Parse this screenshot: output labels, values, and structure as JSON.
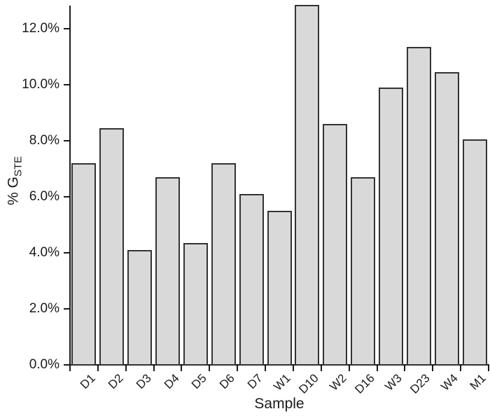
{
  "chart_data": {
    "type": "bar",
    "title": "",
    "xlabel": "Sample",
    "ylabel": "% G_STE",
    "ylabel_main": "% G",
    "ylabel_sub": "STE",
    "categories": [
      "D1",
      "D2",
      "D3",
      "D4",
      "D5",
      "D6",
      "D7",
      "W1",
      "D10",
      "W2",
      "D16",
      "W3",
      "D23",
      "W4",
      "M1"
    ],
    "values": [
      7.2,
      8.45,
      4.1,
      6.7,
      4.35,
      7.2,
      6.1,
      5.5,
      12.85,
      8.6,
      6.7,
      9.9,
      11.35,
      10.45,
      8.05
    ],
    "y_tick_values": [
      0,
      2,
      4,
      6,
      8,
      10,
      12
    ],
    "y_tick_labels": [
      "0.0%",
      "2.0%",
      "4.0%",
      "6.0%",
      "8.0%",
      "10.0%",
      "12.0%"
    ],
    "ylim": [
      0,
      13
    ],
    "grid": false,
    "legend": "none",
    "colors": {
      "bar_fill": "#d9d9d9",
      "bar_border": "#333333",
      "axis": "#1a1a1a",
      "background": "#ffffff"
    }
  }
}
